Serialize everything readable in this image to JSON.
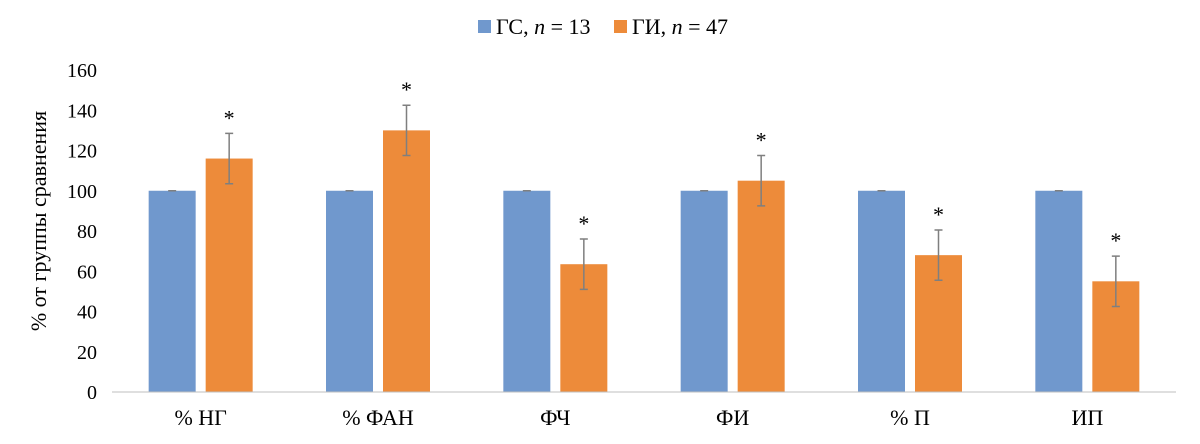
{
  "chart_data": {
    "type": "bar",
    "title": "",
    "xlabel": "",
    "ylabel": "% от группы сравнения",
    "ylim": [
      0,
      160
    ],
    "yticks": [
      0,
      20,
      40,
      60,
      80,
      100,
      120,
      140,
      160
    ],
    "grid": false,
    "legend_position": "top-center",
    "categories": [
      "% НГ",
      "% ФАН",
      "ФЧ",
      "ФИ",
      "% П",
      "ИП"
    ],
    "series": [
      {
        "name": "ГС",
        "n_label": "n",
        "n_eq": " = 13",
        "color": "#7098CD",
        "values": [
          100,
          100,
          100,
          100,
          100,
          100
        ],
        "errors": [
          0,
          0,
          0,
          0,
          0,
          0
        ],
        "annotations": [
          "",
          "",
          "",
          "",
          "",
          ""
        ]
      },
      {
        "name": "ГИ",
        "n_label": "n",
        "n_eq": " = 47",
        "color": "#ED8B3A",
        "values": [
          116,
          130,
          63.5,
          105,
          68,
          55
        ],
        "errors": [
          12.5,
          12.5,
          12.5,
          12.5,
          12.5,
          12.5
        ],
        "annotations": [
          "*",
          "*",
          "*",
          "*",
          "*",
          "*"
        ]
      }
    ]
  }
}
